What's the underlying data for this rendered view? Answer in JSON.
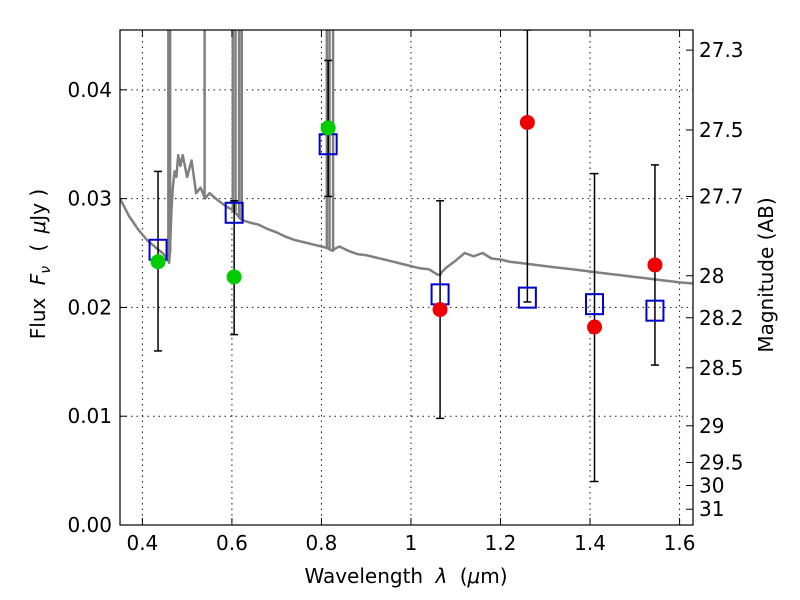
{
  "chart_data": {
    "type": "scatter",
    "xlabel": "Wavelength",
    "xlabel_symbol": "λ",
    "xlabel_unit_open": "(",
    "xlabel_unit_symbol": "μ",
    "xlabel_unit_rest": "m)",
    "ylabel_prefix": "Flux",
    "ylabel_symbol": "F",
    "ylabel_subscript": "ν",
    "ylabel_unit_open": "(",
    "ylabel_unit_symbol": "μ",
    "ylabel_unit_rest": "Jy )",
    "y2label": "Magnitude (AB)",
    "xlim": [
      0.35,
      1.63
    ],
    "ylim": [
      0.0,
      0.0455
    ],
    "x_ticks": [
      0.4,
      0.6,
      0.8,
      1.0,
      1.2,
      1.4,
      1.6
    ],
    "x_tick_labels": [
      "0.4",
      "0.6",
      "0.8",
      "1",
      "1.2",
      "1.4",
      "1.6"
    ],
    "y_ticks": [
      0.0,
      0.01,
      0.02,
      0.03,
      0.04
    ],
    "y_tick_labels": [
      "0.00",
      "0.01",
      "0.02",
      "0.03",
      "0.04"
    ],
    "y2_ticks": [
      {
        "flux": 0.04365,
        "label": "27.3"
      },
      {
        "flux": 0.03631,
        "label": "27.5"
      },
      {
        "flux": 0.0302,
        "label": "27.7"
      },
      {
        "flux": 0.02291,
        "label": "28"
      },
      {
        "flux": 0.01905,
        "label": "28.2"
      },
      {
        "flux": 0.01445,
        "label": "28.5"
      },
      {
        "flux": 0.00912,
        "label": "29"
      },
      {
        "flux": 0.00575,
        "label": "29.5"
      },
      {
        "flux": 0.00363,
        "label": "30"
      },
      {
        "flux": 0.00145,
        "label": "31"
      }
    ],
    "grid": true,
    "colors": {
      "model_spectrum": "#808080",
      "model_photometry": "#0000cc",
      "observed_green": "#00cc00",
      "observed_red": "#ee0000",
      "errorbar": "#000000"
    },
    "model_spectrum": {
      "x": [
        0.35,
        0.37,
        0.39,
        0.41,
        0.43,
        0.445,
        0.455,
        0.46,
        0.462,
        0.465,
        0.468,
        0.472,
        0.476,
        0.48,
        0.485,
        0.49,
        0.5,
        0.51,
        0.52,
        0.53,
        0.54,
        0.55,
        0.57,
        0.59,
        0.6,
        0.605,
        0.61,
        0.62,
        0.625,
        0.64,
        0.66,
        0.68,
        0.7,
        0.72,
        0.74,
        0.76,
        0.78,
        0.8,
        0.81,
        0.815,
        0.82,
        0.825,
        0.83,
        0.84,
        0.86,
        0.88,
        0.9,
        0.92,
        0.94,
        0.96,
        0.98,
        1.0,
        1.02,
        1.04,
        1.06,
        1.065,
        1.07,
        1.08,
        1.1,
        1.12,
        1.14,
        1.16,
        1.18,
        1.2,
        1.22,
        1.24,
        1.26,
        1.28,
        1.3,
        1.32,
        1.34,
        1.36,
        1.38,
        1.4,
        1.42,
        1.44,
        1.46,
        1.48,
        1.5,
        1.52,
        1.54,
        1.56,
        1.58,
        1.6,
        1.63
      ],
      "y": [
        0.03,
        0.0284,
        0.0272,
        0.0262,
        0.0255,
        0.025,
        0.0245,
        0.0241,
        0.0255,
        0.029,
        0.031,
        0.0325,
        0.032,
        0.034,
        0.033,
        0.034,
        0.032,
        0.0335,
        0.0305,
        0.031,
        0.03,
        0.0305,
        0.0298,
        0.0292,
        0.029,
        0.0288,
        0.0286,
        0.0281,
        0.028,
        0.0278,
        0.0276,
        0.0272,
        0.0269,
        0.0265,
        0.0262,
        0.026,
        0.0258,
        0.0256,
        0.0255,
        0.0254,
        0.0253,
        0.0252,
        0.0254,
        0.0256,
        0.0252,
        0.0249,
        0.0248,
        0.0246,
        0.0244,
        0.0242,
        0.024,
        0.0238,
        0.0236,
        0.0235,
        0.023,
        0.023,
        0.0233,
        0.0237,
        0.0243,
        0.025,
        0.0247,
        0.025,
        0.0245,
        0.0244,
        0.0242,
        0.0241,
        0.024,
        0.0239,
        0.0238,
        0.0237,
        0.0236,
        0.0235,
        0.0234,
        0.0233,
        0.0232,
        0.0231,
        0.023,
        0.0229,
        0.0228,
        0.0227,
        0.0226,
        0.0225,
        0.0224,
        0.0223,
        0.0222
      ]
    },
    "emission_spikes": [
      {
        "x": 0.458,
        "y_base": 0.0245
      },
      {
        "x": 0.462,
        "y_base": 0.025
      },
      {
        "x": 0.539,
        "y_base": 0.03
      },
      {
        "x": 0.602,
        "y_base": 0.029
      },
      {
        "x": 0.608,
        "y_base": 0.0288
      },
      {
        "x": 0.616,
        "y_base": 0.0283
      },
      {
        "x": 0.622,
        "y_base": 0.0281
      },
      {
        "x": 0.812,
        "y_base": 0.0255
      },
      {
        "x": 0.818,
        "y_base": 0.0254
      },
      {
        "x": 0.826,
        "y_base": 0.0253
      }
    ],
    "model_photometry": {
      "x": [
        0.435,
        0.605,
        0.815,
        1.065,
        1.26,
        1.41,
        1.545
      ],
      "y": [
        0.0253,
        0.0287,
        0.035,
        0.0212,
        0.0209,
        0.0203,
        0.0197
      ]
    },
    "observed": [
      {
        "x": 0.435,
        "y": 0.0242,
        "err_low": 0.016,
        "err_high": 0.0325,
        "color": "green"
      },
      {
        "x": 0.605,
        "y": 0.0228,
        "err_low": 0.0175,
        "err_high": 0.0298,
        "color": "green"
      },
      {
        "x": 0.815,
        "y": 0.0365,
        "err_low": 0.0302,
        "err_high": 0.0427,
        "color": "green"
      },
      {
        "x": 1.065,
        "y": 0.0198,
        "err_low": 0.0098,
        "err_high": 0.0298,
        "color": "red"
      },
      {
        "x": 1.26,
        "y": 0.037,
        "err_low": 0.0205,
        "err_high": 0.0455,
        "color": "red"
      },
      {
        "x": 1.41,
        "y": 0.0182,
        "err_low": 0.004,
        "err_high": 0.0323,
        "color": "red"
      },
      {
        "x": 1.545,
        "y": 0.0239,
        "err_low": 0.0147,
        "err_high": 0.0331,
        "color": "red"
      }
    ]
  }
}
